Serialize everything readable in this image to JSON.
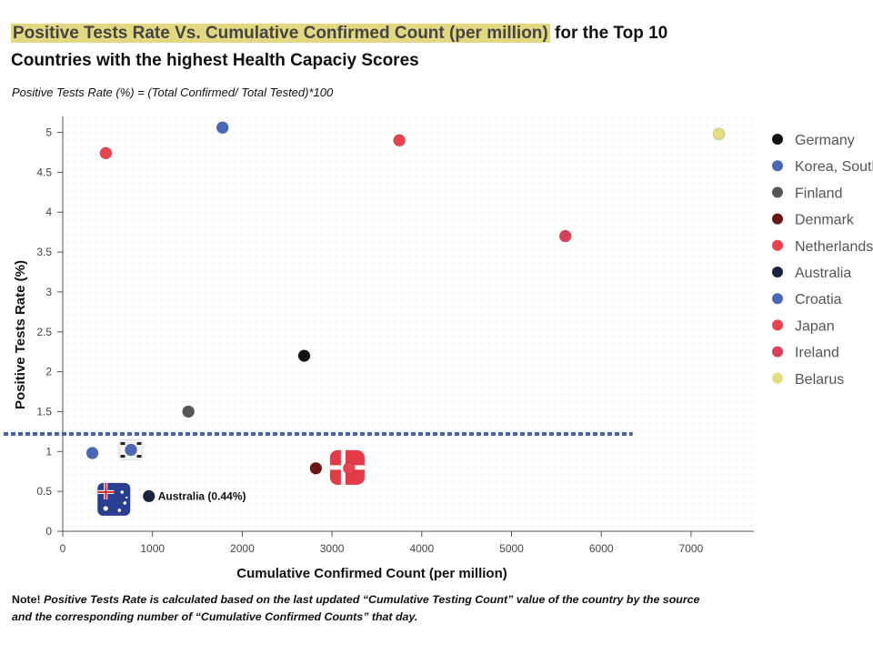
{
  "title": {
    "highlight": "Positive Tests Rate Vs. Cumulative Confirmed Count (per million)",
    "rest": " for the Top 10 Countries with the highest Health Capaciy Scores"
  },
  "subtitle": "Positive Tests Rate (%) = (Total Confirmed/ Total Tested)*100",
  "note": {
    "lead": "Note!",
    "text": " Positive Tests Rate is calculated based on the last updated “Cumulative Testing Count” value of the country by the source and the corresponding number of “Cumulative Confirmed Counts” that day."
  },
  "chart_data": {
    "type": "scatter",
    "xlabel": "Cumulative Confirmed Count (per million)",
    "ylabel": "Positive Tests Rate (%)",
    "xlim": [
      0,
      7700
    ],
    "ylim": [
      0,
      5.2
    ],
    "xticks": [
      0,
      1000,
      2000,
      3000,
      4000,
      5000,
      6000,
      7000
    ],
    "yticks": [
      0,
      0.5,
      1,
      1.5,
      2,
      2.5,
      3,
      3.5,
      4,
      4.5,
      5
    ],
    "grid": false,
    "legend_position": "right",
    "reference_line": {
      "y": 1.22,
      "x_end": 6350,
      "color": "#4a62a8",
      "style": "dotted"
    },
    "series": [
      {
        "name": "Germany",
        "color": "#111111",
        "points": [
          [
            2690,
            2.2
          ]
        ]
      },
      {
        "name": "Korea, South",
        "color": "#4a68b5",
        "points": [
          [
            1780,
            5.06
          ],
          [
            330,
            0.98
          ]
        ]
      },
      {
        "name": "Finland",
        "color": "#555555",
        "points": [
          [
            1400,
            1.5
          ]
        ]
      },
      {
        "name": "Denmark",
        "color": "#6a1414",
        "points": [
          [
            2820,
            0.79
          ]
        ]
      },
      {
        "name": "Netherlands",
        "color": "#e8434f",
        "points": [
          [
            3750,
            4.9
          ],
          [
            480,
            4.74
          ]
        ]
      },
      {
        "name": "Australia",
        "color": "#1a2340",
        "points": [
          [
            960,
            0.44
          ]
        ]
      },
      {
        "name": "Croatia",
        "color": "#4a68b5",
        "points": [
          [
            760,
            1.02
          ]
        ]
      },
      {
        "name": "Japan",
        "color": "#e8434f",
        "points": [
          [
            3190,
            0.79
          ]
        ]
      },
      {
        "name": "Ireland",
        "color": "#d9415a",
        "points": [
          [
            5600,
            3.7
          ]
        ]
      },
      {
        "name": "Belarus",
        "color": "#e6dc80",
        "points": [
          [
            7310,
            4.98
          ]
        ]
      }
    ],
    "annotations": [
      {
        "text": "Australia (0.44%)",
        "x": 960,
        "y": 0.44
      }
    ],
    "flags": [
      {
        "name": "australia-flag",
        "x": 570,
        "y": 0.4
      },
      {
        "name": "korea-flag",
        "x": 760,
        "y": 1.02
      },
      {
        "name": "denmark-flag",
        "x": 3170,
        "y": 0.8
      }
    ]
  }
}
